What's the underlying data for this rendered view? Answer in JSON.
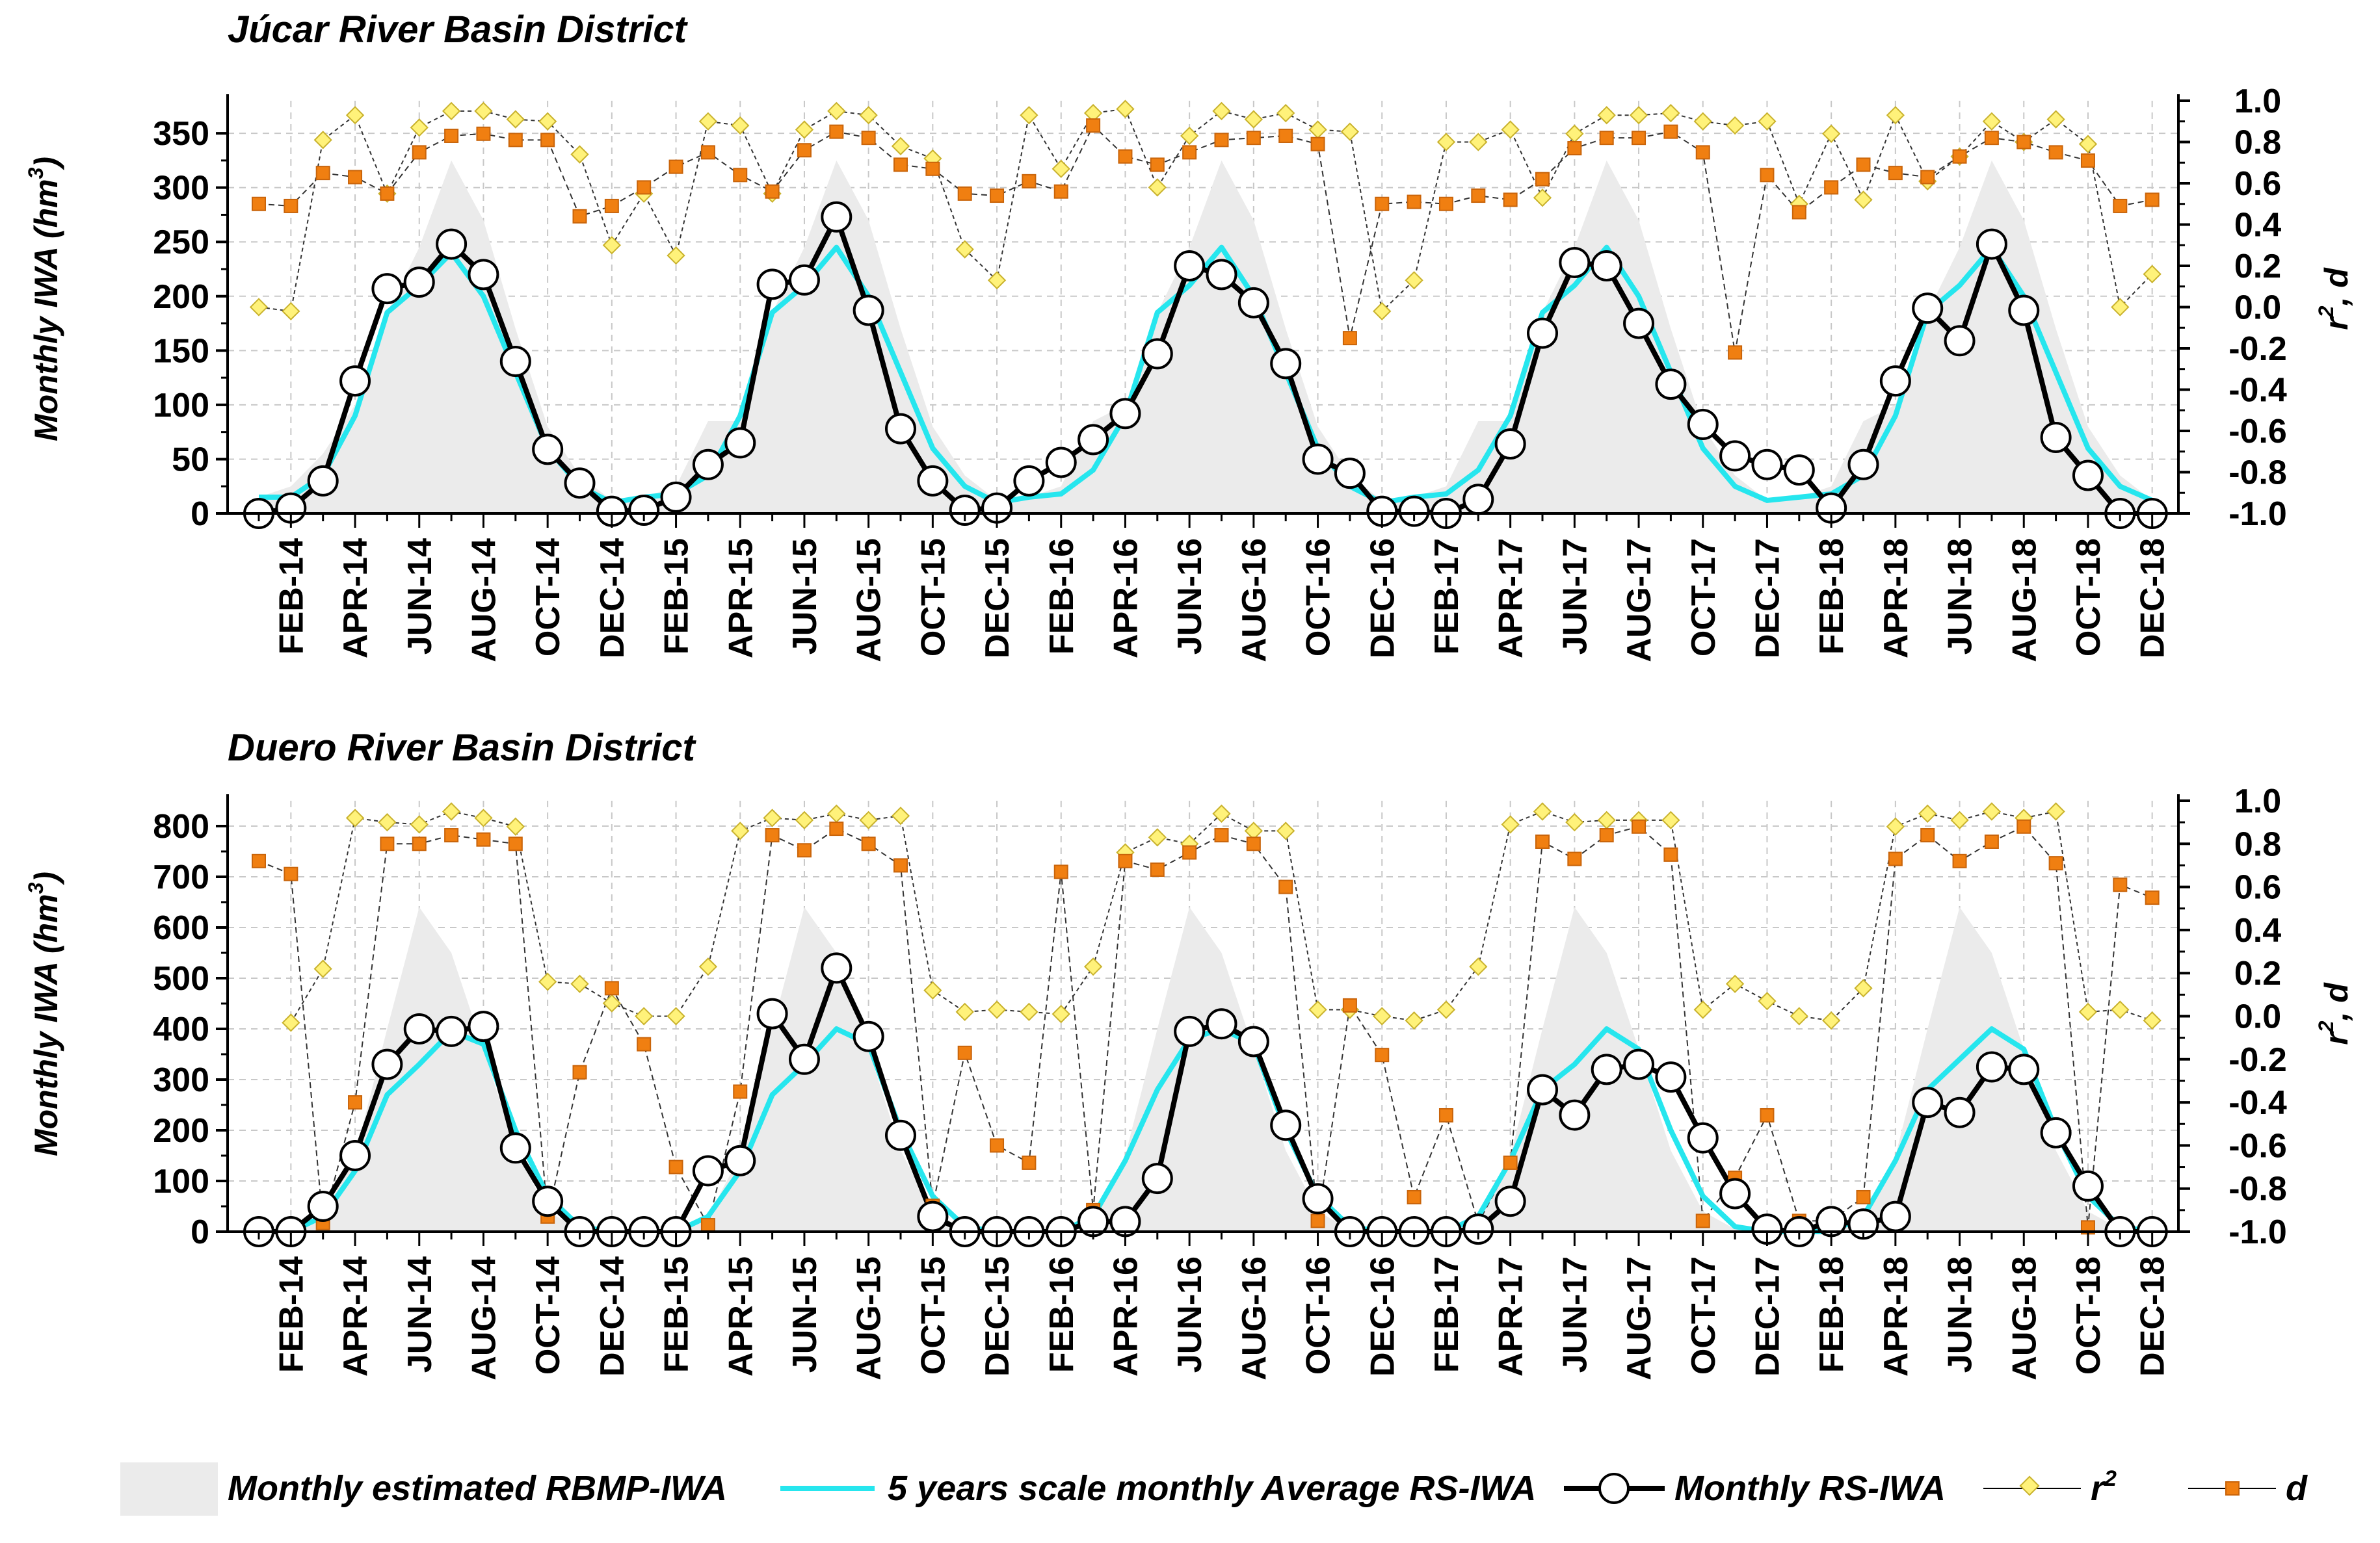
{
  "chart_data": [
    {
      "type": "line",
      "title": "Júcar River Basin District",
      "ylabel": "Monthly IWA (hm³)",
      "ylabel_main": "Monthly IWA (hm",
      "ylabel_sup": "3",
      "ylabel_close": ")",
      "y2label": "r², d",
      "y2label_prefix": "r",
      "y2label_sup": "2",
      "y2label_suffix": ", d",
      "ylim": [
        0,
        380
      ],
      "y2lim": [
        -1.0,
        1.0
      ],
      "yticks": [
        0,
        50,
        100,
        150,
        200,
        250,
        300,
        350
      ],
      "y2ticks": [
        "-1.0",
        "-0.8",
        "-0.6",
        "-0.4",
        "-0.2",
        "0.0",
        "0.2",
        "0.4",
        "0.6",
        "0.8",
        "1.0"
      ],
      "categories": [
        "JAN-14",
        "FEB-14",
        "MAR-14",
        "APR-14",
        "MAY-14",
        "JUN-14",
        "JUL-14",
        "AUG-14",
        "SEP-14",
        "OCT-14",
        "NOV-14",
        "DEC-14",
        "JAN-15",
        "FEB-15",
        "MAR-15",
        "APR-15",
        "MAY-15",
        "JUN-15",
        "JUL-15",
        "AUG-15",
        "SEP-15",
        "OCT-15",
        "NOV-15",
        "DEC-15",
        "JAN-16",
        "FEB-16",
        "MAR-16",
        "APR-16",
        "MAY-16",
        "JUN-16",
        "JUL-16",
        "AUG-16",
        "SEP-16",
        "OCT-16",
        "NOV-16",
        "DEC-16",
        "JAN-17",
        "FEB-17",
        "MAR-17",
        "APR-17",
        "MAY-17",
        "JUN-17",
        "JUL-17",
        "AUG-17",
        "SEP-17",
        "OCT-17",
        "NOV-17",
        "DEC-17",
        "JAN-18",
        "FEB-18",
        "MAR-18",
        "APR-18",
        "MAY-18",
        "JUN-18",
        "JUL-18",
        "AUG-18",
        "SEP-18",
        "OCT-18",
        "NOV-18",
        "DEC-18"
      ],
      "xticklabels": [
        "FEB-14",
        "APR-14",
        "JUN-14",
        "AUG-14",
        "OCT-14",
        "DEC-14",
        "FEB-15",
        "APR-15",
        "JUN-15",
        "AUG-15",
        "OCT-15",
        "DEC-15",
        "FEB-16",
        "APR-16",
        "JUN-16",
        "AUG-16",
        "OCT-16",
        "DEC-16",
        "FEB-17",
        "APR-17",
        "JUN-17",
        "AUG-17",
        "OCT-17",
        "DEC-17",
        "FEB-18",
        "APR-18",
        "JUN-18",
        "AUG-18",
        "OCT-18",
        "DEC-18"
      ],
      "series": [
        {
          "name": "Monthly estimated RBMP-IWA",
          "axis": "left",
          "style": "area",
          "values": [
            15,
            25,
            55,
            100,
            185,
            245,
            325,
            270,
            170,
            80,
            35,
            12,
            15,
            25,
            85,
            85,
            185,
            245,
            325,
            270,
            170,
            80,
            35,
            12,
            15,
            25,
            85,
            100,
            185,
            245,
            325,
            270,
            170,
            80,
            35,
            12,
            15,
            25,
            85,
            85,
            185,
            245,
            325,
            270,
            170,
            80,
            35,
            12,
            15,
            25,
            85,
            100,
            185,
            245,
            325,
            270,
            170,
            80,
            35,
            12
          ]
        },
        {
          "name": "5 years scale monthly Average RS-IWA",
          "axis": "left",
          "style": "line",
          "values": [
            15,
            15,
            35,
            90,
            185,
            210,
            240,
            200,
            130,
            60,
            25,
            10,
            15,
            18,
            35,
            90,
            185,
            210,
            245,
            200,
            130,
            60,
            25,
            10,
            15,
            18,
            40,
            90,
            185,
            210,
            245,
            200,
            130,
            60,
            25,
            10,
            15,
            18,
            40,
            90,
            185,
            210,
            245,
            200,
            130,
            60,
            25,
            12,
            15,
            18,
            35,
            90,
            185,
            210,
            245,
            200,
            130,
            60,
            25,
            12
          ]
        },
        {
          "name": "Monthly RS-IWA",
          "axis": "left",
          "style": "line-markers",
          "values": [
            0,
            5,
            30,
            122,
            207,
            213,
            248,
            220,
            140,
            59,
            28,
            2,
            3,
            15,
            45,
            65,
            211,
            215,
            273,
            187,
            78,
            30,
            3,
            5,
            30,
            47,
            68,
            92,
            147,
            228,
            220,
            194,
            138,
            50,
            37,
            2,
            2,
            0,
            13,
            64,
            166,
            231,
            228,
            175,
            119,
            82,
            53,
            45,
            40,
            5,
            45,
            122,
            189,
            159,
            248,
            187,
            70,
            35,
            0,
            0
          ]
        },
        {
          "name": "r²",
          "axis": "right",
          "style": "line-markers",
          "values": [
            0.0,
            -0.02,
            0.81,
            0.93,
            0.55,
            0.87,
            0.95,
            0.95,
            0.91,
            0.9,
            0.74,
            0.3,
            0.55,
            0.25,
            0.9,
            0.88,
            0.55,
            0.86,
            0.95,
            0.93,
            0.78,
            0.72,
            0.28,
            0.13,
            0.93,
            0.67,
            0.94,
            0.96,
            0.58,
            0.83,
            0.95,
            0.91,
            0.94,
            0.86,
            0.85,
            -0.02,
            0.13,
            0.8,
            0.8,
            0.86,
            0.53,
            0.84,
            0.93,
            0.93,
            0.94,
            0.9,
            0.88,
            0.9,
            0.5,
            0.84,
            0.52,
            0.93,
            0.61,
            0.73,
            0.9,
            0.8,
            0.91,
            0.79,
            0.0,
            0.16
          ]
        },
        {
          "name": "d",
          "axis": "right",
          "style": "line-markers",
          "values": [
            0.5,
            0.49,
            0.65,
            0.63,
            0.55,
            0.75,
            0.83,
            0.84,
            0.81,
            0.81,
            0.44,
            0.49,
            0.58,
            0.68,
            0.75,
            0.64,
            0.56,
            0.76,
            0.85,
            0.82,
            0.69,
            0.67,
            0.55,
            0.54,
            0.61,
            0.56,
            0.88,
            0.73,
            0.69,
            0.75,
            0.81,
            0.82,
            0.83,
            0.79,
            -0.15,
            0.5,
            0.51,
            0.5,
            0.54,
            0.52,
            0.62,
            0.77,
            0.82,
            0.82,
            0.85,
            0.75,
            -0.22,
            0.64,
            0.46,
            0.58,
            0.69,
            0.65,
            0.63,
            0.73,
            0.82,
            0.8,
            0.75,
            0.71,
            0.49,
            0.52
          ]
        }
      ]
    },
    {
      "type": "line",
      "title": "Duero River Basin District",
      "ylabel": "Monthly IWA (hm³)",
      "ylabel_main": "Monthly IWA (hm",
      "ylabel_sup": "3",
      "ylabel_close": ")",
      "y2label": "r², d",
      "y2label_prefix": "r",
      "y2label_sup": "2",
      "y2label_suffix": ", d",
      "ylim": [
        0,
        850
      ],
      "y2lim": [
        -1.0,
        1.0
      ],
      "yticks": [
        0,
        100,
        200,
        300,
        400,
        500,
        600,
        700,
        800
      ],
      "y2ticks": [
        "-1.0",
        "-0.8",
        "-0.6",
        "-0.4",
        "-0.2",
        "0.0",
        "0.2",
        "0.4",
        "0.6",
        "0.8",
        "1.0"
      ],
      "categories": [
        "JAN-14",
        "FEB-14",
        "MAR-14",
        "APR-14",
        "MAY-14",
        "JUN-14",
        "JUL-14",
        "AUG-14",
        "SEP-14",
        "OCT-14",
        "NOV-14",
        "DEC-14",
        "JAN-15",
        "FEB-15",
        "MAR-15",
        "APR-15",
        "MAY-15",
        "JUN-15",
        "JUL-15",
        "AUG-15",
        "SEP-15",
        "OCT-15",
        "NOV-15",
        "DEC-15",
        "JAN-16",
        "FEB-16",
        "MAR-16",
        "APR-16",
        "MAY-16",
        "JUN-16",
        "JUL-16",
        "AUG-16",
        "SEP-16",
        "OCT-16",
        "NOV-16",
        "DEC-16",
        "JAN-17",
        "FEB-17",
        "MAR-17",
        "APR-17",
        "MAY-17",
        "JUN-17",
        "JUL-17",
        "AUG-17",
        "SEP-17",
        "OCT-17",
        "NOV-17",
        "DEC-17",
        "JAN-18",
        "FEB-18",
        "MAR-18",
        "APR-18",
        "MAY-18",
        "JUN-18",
        "JUL-18",
        "AUG-18",
        "SEP-18",
        "OCT-18",
        "NOV-18",
        "DEC-18"
      ],
      "xticklabels": [
        "FEB-14",
        "APR-14",
        "JUN-14",
        "AUG-14",
        "OCT-14",
        "DEC-14",
        "FEB-15",
        "APR-15",
        "JUN-15",
        "AUG-15",
        "OCT-15",
        "DEC-15",
        "FEB-16",
        "APR-16",
        "JUN-16",
        "AUG-16",
        "OCT-16",
        "DEC-16",
        "FEB-17",
        "APR-17",
        "JUN-17",
        "AUG-17",
        "OCT-17",
        "DEC-17",
        "FEB-18",
        "APR-18",
        "JUN-18",
        "AUG-18",
        "OCT-18",
        "DEC-18"
      ],
      "series": [
        {
          "name": "Monthly estimated RBMP-IWA",
          "axis": "left",
          "style": "area",
          "values": [
            0,
            0,
            30,
            150,
            400,
            640,
            550,
            360,
            160,
            40,
            5,
            0,
            0,
            0,
            30,
            150,
            400,
            640,
            550,
            360,
            160,
            40,
            5,
            0,
            0,
            0,
            30,
            150,
            400,
            640,
            550,
            360,
            160,
            40,
            5,
            0,
            0,
            0,
            30,
            150,
            400,
            640,
            550,
            360,
            160,
            40,
            5,
            0,
            0,
            0,
            30,
            150,
            400,
            640,
            550,
            360,
            160,
            40,
            5,
            0
          ]
        },
        {
          "name": "5 years scale monthly Average RS-IWA",
          "axis": "left",
          "style": "line",
          "values": [
            0,
            0,
            30,
            120,
            270,
            330,
            395,
            370,
            200,
            70,
            10,
            0,
            0,
            0,
            30,
            120,
            270,
            330,
            400,
            370,
            200,
            70,
            10,
            0,
            0,
            0,
            30,
            140,
            280,
            380,
            400,
            370,
            200,
            70,
            10,
            0,
            0,
            0,
            30,
            140,
            280,
            330,
            400,
            360,
            200,
            70,
            10,
            0,
            0,
            0,
            30,
            140,
            280,
            340,
            400,
            360,
            200,
            70,
            10,
            0
          ]
        },
        {
          "name": "Monthly RS-IWA",
          "axis": "left",
          "style": "line-markers",
          "values": [
            0,
            0,
            50,
            150,
            330,
            400,
            395,
            405,
            165,
            60,
            0,
            0,
            0,
            0,
            120,
            140,
            430,
            340,
            520,
            385,
            190,
            30,
            0,
            0,
            0,
            0,
            20,
            20,
            105,
            395,
            410,
            375,
            210,
            65,
            0,
            0,
            0,
            0,
            5,
            60,
            280,
            230,
            320,
            330,
            305,
            185,
            75,
            5,
            0,
            20,
            15,
            30,
            255,
            235,
            325,
            320,
            195,
            90,
            0,
            0
          ]
        },
        {
          "name": "r²",
          "axis": "right",
          "style": "line-markers",
          "values": [
            null,
            -0.03,
            0.22,
            0.92,
            0.9,
            0.89,
            0.95,
            0.92,
            0.88,
            0.16,
            0.15,
            0.06,
            0.0,
            0.0,
            0.23,
            0.86,
            0.92,
            0.91,
            0.94,
            0.91,
            0.93,
            0.12,
            0.02,
            0.03,
            0.02,
            0.01,
            0.23,
            0.76,
            0.83,
            0.8,
            0.94,
            0.86,
            0.86,
            0.03,
            0.03,
            0.0,
            -0.02,
            0.03,
            0.23,
            0.89,
            0.95,
            0.9,
            0.91,
            0.91,
            0.91,
            0.03,
            0.15,
            0.07,
            0.0,
            -0.02,
            0.13,
            0.88,
            0.94,
            0.91,
            0.95,
            0.92,
            0.95,
            0.02,
            0.03,
            -0.02
          ]
        },
        {
          "name": "d",
          "axis": "right",
          "style": "line-markers",
          "values": [
            0.72,
            0.66,
            -0.96,
            -0.4,
            0.8,
            0.8,
            0.84,
            0.82,
            0.8,
            -0.93,
            -0.26,
            0.13,
            -0.13,
            -0.7,
            -0.97,
            -0.35,
            0.84,
            0.77,
            0.87,
            0.8,
            0.7,
            -0.88,
            -0.17,
            -0.6,
            -0.68,
            0.67,
            -0.9,
            0.72,
            0.68,
            0.76,
            0.84,
            0.8,
            0.6,
            -0.95,
            0.05,
            -0.18,
            -0.84,
            -0.46,
            -0.96,
            -0.68,
            0.81,
            0.73,
            0.84,
            0.88,
            0.75,
            -0.95,
            -0.75,
            -0.46,
            -0.95,
            -0.95,
            -0.84,
            0.73,
            0.84,
            0.72,
            0.81,
            0.88,
            0.71,
            -0.98,
            0.61,
            0.55
          ]
        }
      ]
    }
  ],
  "legend": {
    "rbmp": "Monthly estimated RBMP-IWA",
    "avg": "5 years scale monthly Average RS-IWA",
    "rs": "Monthly RS-IWA",
    "r2_prefix": "r",
    "r2_sup": "2",
    "d": "d"
  },
  "colors": {
    "area": "#ebebeb",
    "avg": "#26e6ee",
    "rs": "#000000",
    "r2_fill": "#fff27a",
    "r2_stroke": "#c9b22d",
    "d_fill": "#f07f11",
    "d_stroke": "#c9640a"
  }
}
